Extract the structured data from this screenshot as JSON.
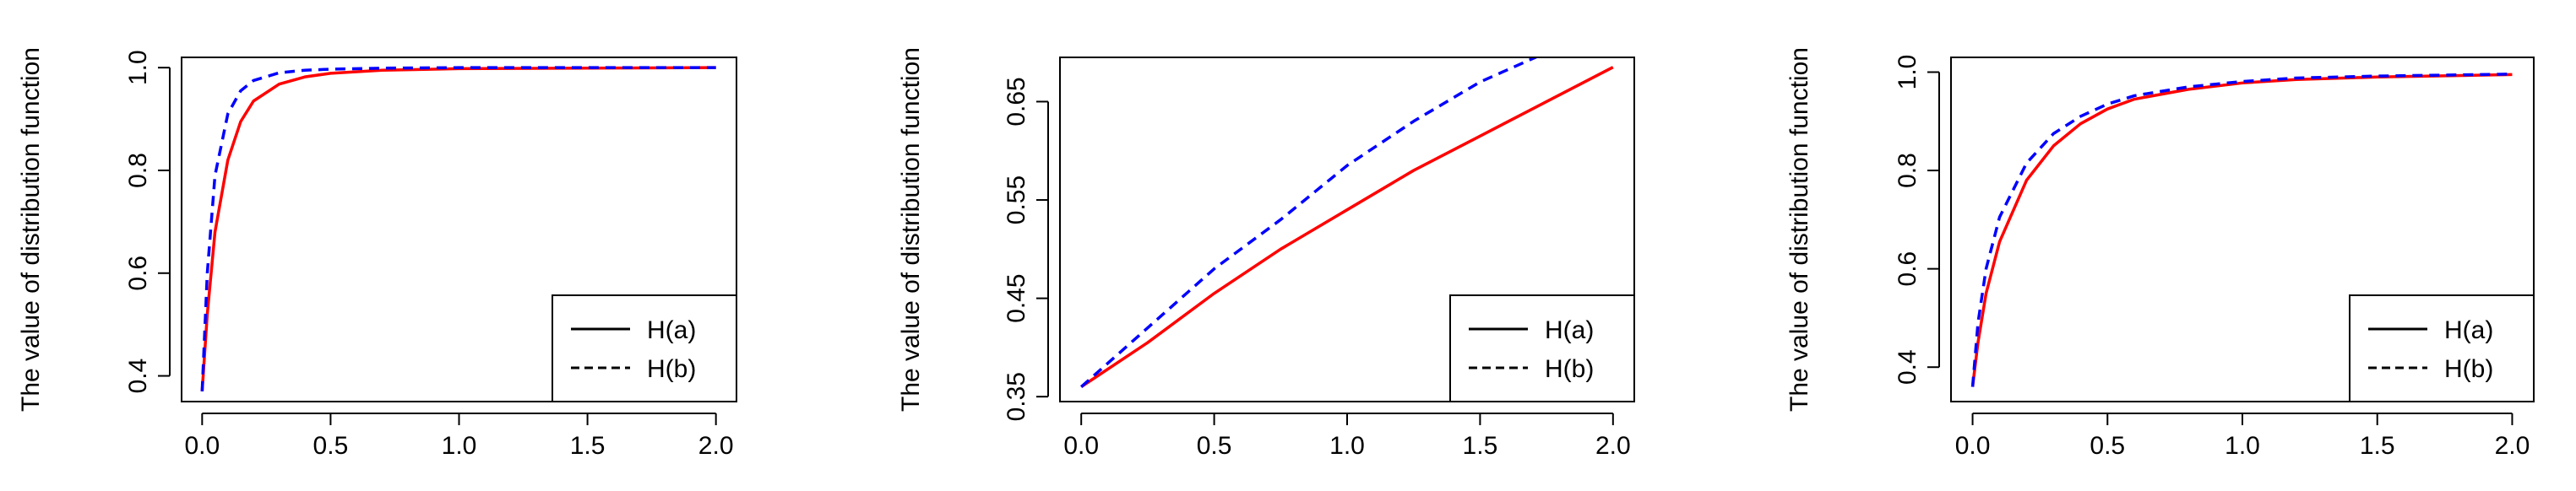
{
  "chart_data": [
    {
      "type": "line",
      "title": "",
      "xlabel": "",
      "ylabel": "The value of distribution function",
      "xlim": [
        0.0,
        2.0
      ],
      "ylim": [
        0.35,
        1.02
      ],
      "x_ticks": [
        0.0,
        0.5,
        1.0,
        1.5,
        2.0
      ],
      "x_tick_labels": [
        "0.0",
        "0.5",
        "1.0",
        "1.5",
        "2.0"
      ],
      "y_ticks": [
        0.4,
        0.6,
        0.8,
        1.0
      ],
      "y_tick_labels": [
        "0.4",
        "0.6",
        "0.8",
        "1.0"
      ],
      "grid": false,
      "legend_position": "bottom-right",
      "series": [
        {
          "name": "H(a)",
          "color": "#ff0000",
          "dash": "solid",
          "x": [
            0.0,
            0.02,
            0.05,
            0.1,
            0.15,
            0.2,
            0.3,
            0.4,
            0.5,
            0.7,
            1.0,
            1.5,
            2.0
          ],
          "y": [
            0.37,
            0.52,
            0.68,
            0.82,
            0.895,
            0.935,
            0.968,
            0.982,
            0.989,
            0.995,
            0.998,
            0.999,
            1.0
          ]
        },
        {
          "name": "H(b)",
          "color": "#0000ff",
          "dash": "dashed",
          "x": [
            0.0,
            0.02,
            0.05,
            0.1,
            0.15,
            0.2,
            0.3,
            0.4,
            0.5,
            0.7,
            1.0,
            1.5,
            2.0
          ],
          "y": [
            0.37,
            0.6,
            0.79,
            0.91,
            0.955,
            0.975,
            0.99,
            0.995,
            0.997,
            0.999,
            1.0,
            1.0,
            1.0
          ]
        }
      ]
    },
    {
      "type": "line",
      "title": "",
      "xlabel": "",
      "ylabel": "The value of distribution function",
      "xlim": [
        0.0,
        2.0
      ],
      "ylim": [
        0.345,
        0.695
      ],
      "x_ticks": [
        0.0,
        0.5,
        1.0,
        1.5,
        2.0
      ],
      "x_tick_labels": [
        "0.0",
        "0.5",
        "1.0",
        "1.5",
        "2.0"
      ],
      "y_ticks": [
        0.35,
        0.45,
        0.55,
        0.65
      ],
      "y_tick_labels": [
        "0.35",
        "0.45",
        "0.55",
        "0.65"
      ],
      "grid": false,
      "legend_position": "bottom-right",
      "series": [
        {
          "name": "H(a)",
          "color": "#ff0000",
          "dash": "solid",
          "x": [
            0.0,
            0.25,
            0.5,
            0.75,
            1.0,
            1.25,
            1.5,
            1.75,
            2.0
          ],
          "y": [
            0.36,
            0.405,
            0.455,
            0.5,
            0.54,
            0.58,
            0.615,
            0.65,
            0.685
          ]
        },
        {
          "name": "H(b)",
          "color": "#0000ff",
          "dash": "dashed",
          "x": [
            0.0,
            0.25,
            0.5,
            0.75,
            1.0,
            1.25,
            1.5,
            1.75
          ],
          "y": [
            0.36,
            0.42,
            0.48,
            0.53,
            0.585,
            0.63,
            0.67,
            0.7
          ]
        }
      ]
    },
    {
      "type": "line",
      "title": "",
      "xlabel": "",
      "ylabel": "The value of distribution function",
      "xlim": [
        0.0,
        2.0
      ],
      "ylim": [
        0.33,
        1.03
      ],
      "x_ticks": [
        0.0,
        0.5,
        1.0,
        1.5,
        2.0
      ],
      "x_tick_labels": [
        "0.0",
        "0.5",
        "1.0",
        "1.5",
        "2.0"
      ],
      "y_ticks": [
        0.4,
        0.6,
        0.8,
        1.0
      ],
      "y_tick_labels": [
        "0.4",
        "0.6",
        "0.8",
        "1.0"
      ],
      "grid": false,
      "legend_position": "bottom-right",
      "series": [
        {
          "name": "H(a)",
          "color": "#ff0000",
          "dash": "solid",
          "x": [
            0.0,
            0.02,
            0.05,
            0.1,
            0.2,
            0.3,
            0.4,
            0.5,
            0.6,
            0.8,
            1.0,
            1.2,
            1.5,
            2.0
          ],
          "y": [
            0.36,
            0.45,
            0.55,
            0.655,
            0.78,
            0.85,
            0.895,
            0.925,
            0.945,
            0.965,
            0.978,
            0.985,
            0.99,
            0.995
          ]
        },
        {
          "name": "H(b)",
          "color": "#0000ff",
          "dash": "dashed",
          "x": [
            0.0,
            0.02,
            0.05,
            0.1,
            0.2,
            0.3,
            0.4,
            0.5,
            0.6,
            0.8,
            1.0,
            1.2,
            1.5,
            2.0
          ],
          "y": [
            0.36,
            0.49,
            0.6,
            0.705,
            0.815,
            0.875,
            0.91,
            0.935,
            0.952,
            0.97,
            0.981,
            0.988,
            0.992,
            0.996
          ]
        }
      ]
    }
  ]
}
